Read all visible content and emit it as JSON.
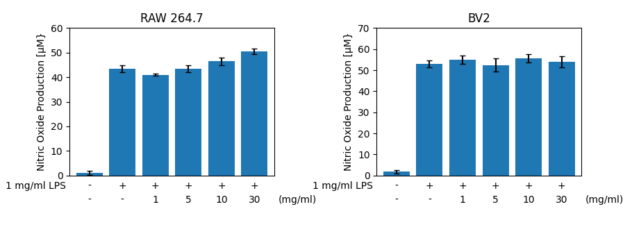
{
  "chart_data": [
    {
      "type": "bar",
      "title": "RAW 264.7",
      "y_label": "Nitric Oxide Production [μM}",
      "categories": [
        null,
        null,
        null,
        null,
        null,
        null
      ],
      "values": [
        1.0,
        43.5,
        41.0,
        43.5,
        46.5,
        50.5
      ],
      "errors": [
        0.8,
        1.5,
        0.5,
        1.5,
        1.5,
        1.2
      ],
      "ylim": [
        0,
        60
      ],
      "yticks": [
        0,
        10,
        20,
        30,
        40,
        50,
        60
      ],
      "tick_labels": "y",
      "sign_rows": [
        {
          "label": "1 mg/ml LPS",
          "signs": [
            "-",
            "+",
            "+",
            "+",
            "+",
            "+"
          ]
        },
        {
          "label": "(mg/ml)",
          "signs": [
            "-",
            "-",
            "1",
            "5",
            "10",
            "30"
          ]
        }
      ]
    },
    {
      "type": "bar",
      "title": "BV2",
      "y_label": "Nitric Oxide Production [μM}",
      "categories": [
        null,
        null,
        null,
        null,
        null,
        null
      ],
      "values": [
        1.8,
        53.0,
        55.0,
        52.5,
        55.5,
        54.0
      ],
      "errors": [
        0.8,
        1.5,
        2.0,
        3.0,
        2.0,
        2.5
      ],
      "ylim": [
        0,
        70
      ],
      "yticks": [
        0,
        10,
        20,
        30,
        40,
        50,
        60,
        70
      ],
      "tick_labels": "y",
      "sign_rows": [
        {
          "label": "1 mg/ml LPS",
          "signs": [
            "-",
            "+",
            "+",
            "+",
            "+",
            "+"
          ]
        },
        {
          "label": "(mg/ml)",
          "signs": [
            "-",
            "-",
            "1",
            "5",
            "10",
            "30"
          ]
        }
      ]
    }
  ]
}
